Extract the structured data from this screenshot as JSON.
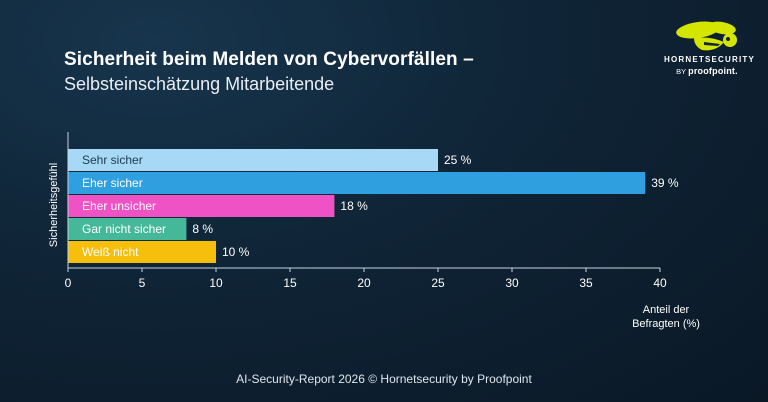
{
  "header": {
    "title": "Sicherheit beim Melden von Cybervorfällen –",
    "subtitle": "Selbsteinschätzung Mitarbeitende"
  },
  "logo": {
    "brand": "HORNETSECURITY",
    "by": "BY",
    "partner": "proofpoint.",
    "color": "#d4e600"
  },
  "footer": {
    "text": "AI-Security-Report 2026 © Hornetsecurity by Proofpoint"
  },
  "chart_data": {
    "type": "bar",
    "orientation": "horizontal",
    "categories": [
      "Sehr sicher",
      "Eher sicher",
      "Eher unsicher",
      "Gar nicht sicher",
      "Weiß nicht"
    ],
    "values": [
      25,
      39,
      18,
      8,
      10
    ],
    "value_labels": [
      "25 %",
      "39 %",
      "18 %",
      "8 %",
      "10 %"
    ],
    "colors": [
      "#a7d8f6",
      "#2f9fdf",
      "#ee52c5",
      "#45b89a",
      "#f6bf0c"
    ],
    "xlabel_line1": "Anteil der",
    "xlabel_line2": "Befragten (%)",
    "ylabel": "Sicherheitsgefühl",
    "xlim": [
      0,
      40
    ],
    "xticks": [
      "0",
      "5",
      "10",
      "15",
      "20",
      "25",
      "30",
      "35",
      "40"
    ],
    "grid": false
  }
}
